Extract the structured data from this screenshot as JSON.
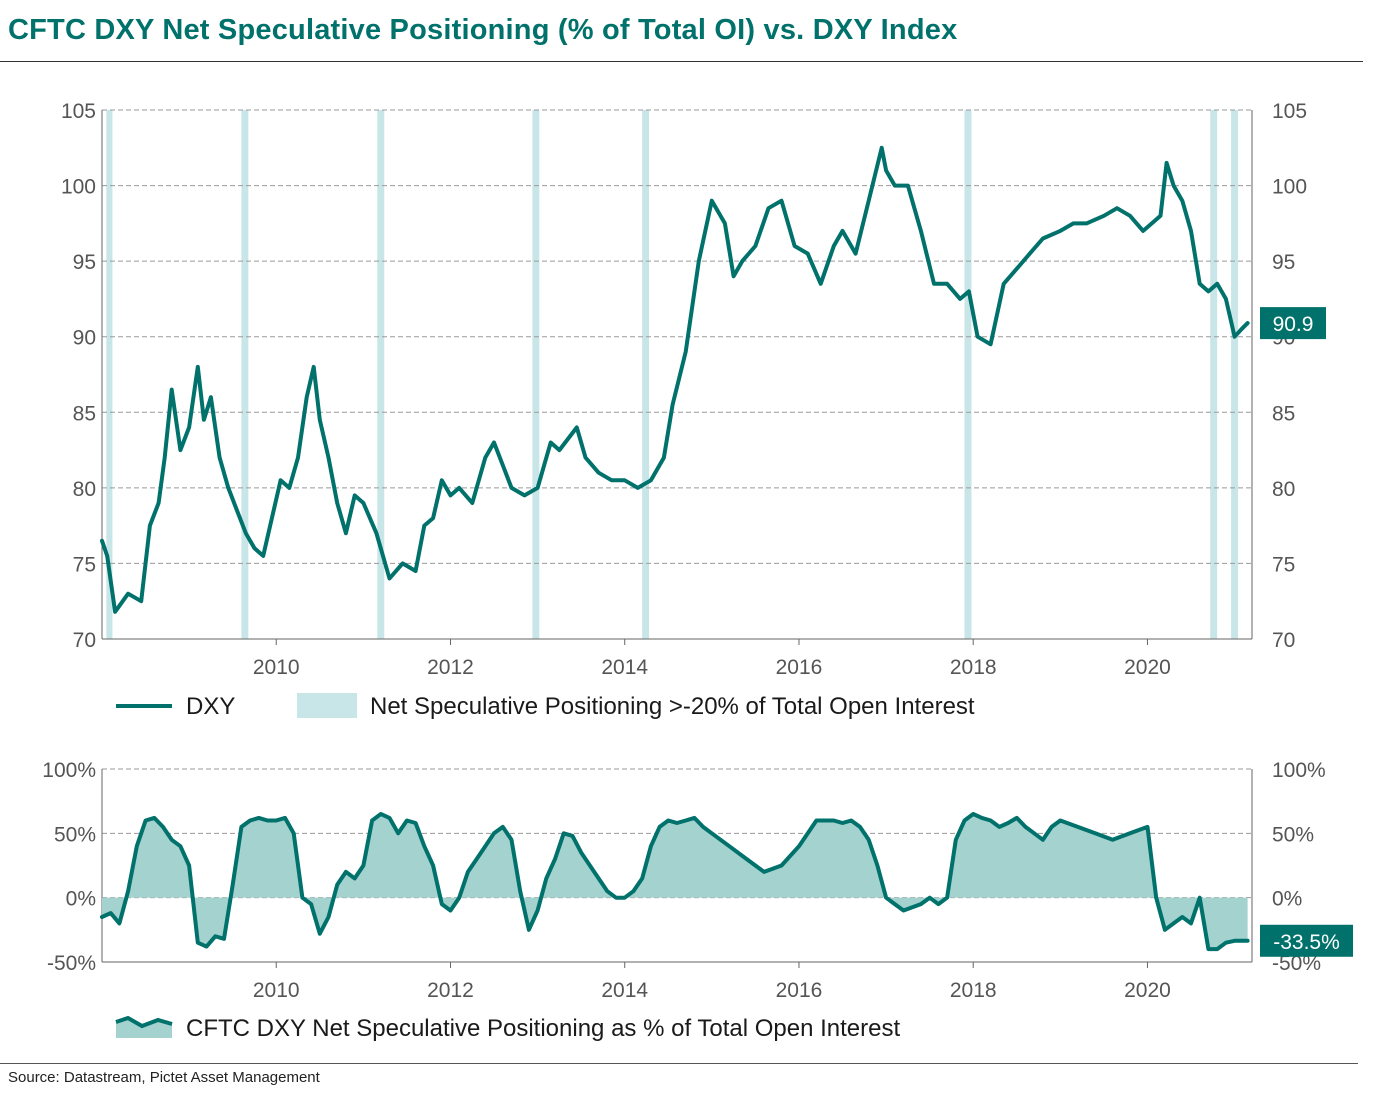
{
  "title": "CFTC DXY Net Speculative Positioning (% of Total OI) vs. DXY Index",
  "source": "Source: Datastream, Pictet Asset Management",
  "colors": {
    "line": "#00716b",
    "band": "#c8e6e8",
    "area": "#a3d2cf",
    "title": "#00716b",
    "grid": "#9a9a9a"
  },
  "chart_data": [
    {
      "type": "line",
      "name": "dxy-chart",
      "x_range": [
        2008.0,
        2021.2
      ],
      "ylim": [
        70,
        105
      ],
      "y_ticks": [
        "70",
        "75",
        "80",
        "85",
        "90",
        "95",
        "100",
        "105"
      ],
      "x_ticks": [
        "2010",
        "2012",
        "2014",
        "2016",
        "2018",
        "2020"
      ],
      "grid": true,
      "legend": "bottom",
      "legend_items": [
        "DXY",
        "Net Speculative Positioning >-20% of Total Open Interest"
      ],
      "shaded_periods": [
        [
          2008.05,
          2008.12
        ],
        [
          2009.6,
          2009.68
        ],
        [
          2011.16,
          2011.24
        ],
        [
          2012.94,
          2013.02
        ],
        [
          2014.2,
          2014.28
        ],
        [
          2017.9,
          2017.98
        ],
        [
          2020.72,
          2020.8
        ],
        [
          2020.96,
          2021.04
        ]
      ],
      "last_value_label": "90.9",
      "series": [
        {
          "name": "DXY",
          "x": [
            2008.0,
            2008.06,
            2008.15,
            2008.3,
            2008.45,
            2008.55,
            2008.65,
            2008.72,
            2008.8,
            2008.9,
            2009.0,
            2009.1,
            2009.17,
            2009.25,
            2009.35,
            2009.45,
            2009.55,
            2009.65,
            2009.75,
            2009.85,
            2009.95,
            2010.05,
            2010.15,
            2010.25,
            2010.35,
            2010.43,
            2010.5,
            2010.6,
            2010.7,
            2010.8,
            2010.9,
            2011.0,
            2011.15,
            2011.3,
            2011.45,
            2011.6,
            2011.7,
            2011.8,
            2011.9,
            2012.0,
            2012.1,
            2012.25,
            2012.4,
            2012.5,
            2012.6,
            2012.7,
            2012.85,
            2013.0,
            2013.15,
            2013.25,
            2013.45,
            2013.55,
            2013.7,
            2013.85,
            2014.0,
            2014.15,
            2014.3,
            2014.45,
            2014.55,
            2014.7,
            2014.85,
            2015.0,
            2015.15,
            2015.25,
            2015.35,
            2015.5,
            2015.65,
            2015.8,
            2015.95,
            2016.1,
            2016.25,
            2016.4,
            2016.5,
            2016.65,
            2016.8,
            2016.95,
            2017.0,
            2017.1,
            2017.25,
            2017.4,
            2017.55,
            2017.7,
            2017.85,
            2017.95,
            2018.05,
            2018.2,
            2018.35,
            2018.5,
            2018.65,
            2018.8,
            2019.0,
            2019.15,
            2019.3,
            2019.5,
            2019.65,
            2019.8,
            2019.95,
            2020.05,
            2020.15,
            2020.22,
            2020.3,
            2020.4,
            2020.5,
            2020.6,
            2020.7,
            2020.8,
            2020.9,
            2021.0,
            2021.08,
            2021.15
          ],
          "values": [
            76.5,
            75.5,
            71.8,
            73.0,
            72.5,
            77.5,
            79.0,
            82.0,
            86.5,
            82.5,
            84.0,
            88.0,
            84.5,
            86.0,
            82.0,
            80.0,
            78.5,
            77.0,
            76.0,
            75.5,
            78.0,
            80.5,
            80.0,
            82.0,
            86.0,
            88.0,
            84.5,
            82.0,
            79.0,
            77.0,
            79.5,
            79.0,
            77.0,
            74.0,
            75.0,
            74.5,
            77.5,
            78.0,
            80.5,
            79.5,
            80.0,
            79.0,
            82.0,
            83.0,
            81.5,
            80.0,
            79.5,
            80.0,
            83.0,
            82.5,
            84.0,
            82.0,
            81.0,
            80.5,
            80.5,
            80.0,
            80.5,
            82.0,
            85.5,
            89.0,
            95.0,
            99.0,
            97.5,
            94.0,
            95.0,
            96.0,
            98.5,
            99.0,
            96.0,
            95.5,
            93.5,
            96.0,
            97.0,
            95.5,
            99.0,
            102.5,
            101.0,
            100.0,
            100.0,
            97.0,
            93.5,
            93.5,
            92.5,
            93.0,
            90.0,
            89.5,
            93.5,
            94.5,
            95.5,
            96.5,
            97.0,
            97.5,
            97.5,
            98.0,
            98.5,
            98.0,
            97.0,
            97.5,
            98.0,
            101.5,
            100.0,
            99.0,
            97.0,
            93.5,
            93.0,
            93.5,
            92.5,
            90.0,
            90.5,
            90.9
          ]
        }
      ]
    },
    {
      "type": "area",
      "name": "positioning-chart",
      "x_range": [
        2008.0,
        2021.2
      ],
      "ylim": [
        -50,
        100
      ],
      "y_ticks": [
        "-50%",
        "0%",
        "50%",
        "100%"
      ],
      "y_tick_values": [
        -50,
        0,
        50,
        100
      ],
      "x_ticks": [
        "2010",
        "2012",
        "2014",
        "2016",
        "2018",
        "2020"
      ],
      "grid": true,
      "legend": "bottom",
      "legend_items": [
        "CFTC DXY Net Speculative Positioning as % of Total Open Interest"
      ],
      "last_value_label": "-33.5%",
      "series": [
        {
          "name": "CFTC DXY Net Speculative Positioning as % of Total Open Interest",
          "x": [
            2008.0,
            2008.1,
            2008.2,
            2008.3,
            2008.4,
            2008.5,
            2008.6,
            2008.7,
            2008.8,
            2008.9,
            2009.0,
            2009.1,
            2009.2,
            2009.3,
            2009.4,
            2009.5,
            2009.6,
            2009.7,
            2009.8,
            2009.9,
            2010.0,
            2010.1,
            2010.2,
            2010.3,
            2010.4,
            2010.5,
            2010.6,
            2010.7,
            2010.8,
            2010.9,
            2011.0,
            2011.1,
            2011.2,
            2011.3,
            2011.4,
            2011.5,
            2011.6,
            2011.7,
            2011.8,
            2011.9,
            2012.0,
            2012.1,
            2012.2,
            2012.3,
            2012.4,
            2012.5,
            2012.6,
            2012.7,
            2012.8,
            2012.9,
            2013.0,
            2013.1,
            2013.2,
            2013.3,
            2013.4,
            2013.5,
            2013.6,
            2013.7,
            2013.8,
            2013.9,
            2014.0,
            2014.1,
            2014.2,
            2014.3,
            2014.4,
            2014.5,
            2014.6,
            2014.7,
            2014.8,
            2014.9,
            2015.0,
            2015.2,
            2015.4,
            2015.6,
            2015.8,
            2016.0,
            2016.2,
            2016.4,
            2016.5,
            2016.6,
            2016.7,
            2016.8,
            2016.9,
            2017.0,
            2017.2,
            2017.4,
            2017.5,
            2017.6,
            2017.7,
            2017.8,
            2017.9,
            2018.0,
            2018.1,
            2018.2,
            2018.3,
            2018.4,
            2018.5,
            2018.6,
            2018.7,
            2018.8,
            2018.9,
            2019.0,
            2019.2,
            2019.4,
            2019.6,
            2019.8,
            2020.0,
            2020.1,
            2020.2,
            2020.3,
            2020.4,
            2020.5,
            2020.6,
            2020.7,
            2020.8,
            2020.9,
            2021.0,
            2021.1,
            2021.15
          ],
          "values": [
            -15,
            -12,
            -20,
            5,
            40,
            60,
            62,
            55,
            45,
            40,
            25,
            -35,
            -38,
            -30,
            -32,
            10,
            55,
            60,
            62,
            60,
            60,
            62,
            50,
            0,
            -5,
            -28,
            -15,
            10,
            20,
            15,
            25,
            60,
            65,
            62,
            50,
            60,
            58,
            40,
            25,
            -5,
            -10,
            0,
            20,
            30,
            40,
            50,
            55,
            45,
            5,
            -25,
            -10,
            15,
            30,
            50,
            48,
            35,
            25,
            15,
            5,
            0,
            0,
            5,
            15,
            40,
            55,
            60,
            58,
            60,
            62,
            55,
            50,
            40,
            30,
            20,
            25,
            40,
            60,
            60,
            58,
            60,
            55,
            45,
            25,
            0,
            -10,
            -5,
            0,
            -5,
            0,
            45,
            60,
            65,
            62,
            60,
            55,
            58,
            62,
            55,
            50,
            45,
            55,
            60,
            55,
            50,
            45,
            50,
            55,
            0,
            -25,
            -20,
            -15,
            -20,
            0,
            -40,
            -40,
            -35,
            -33.5,
            -33.5,
            -33.5
          ]
        }
      ]
    }
  ]
}
